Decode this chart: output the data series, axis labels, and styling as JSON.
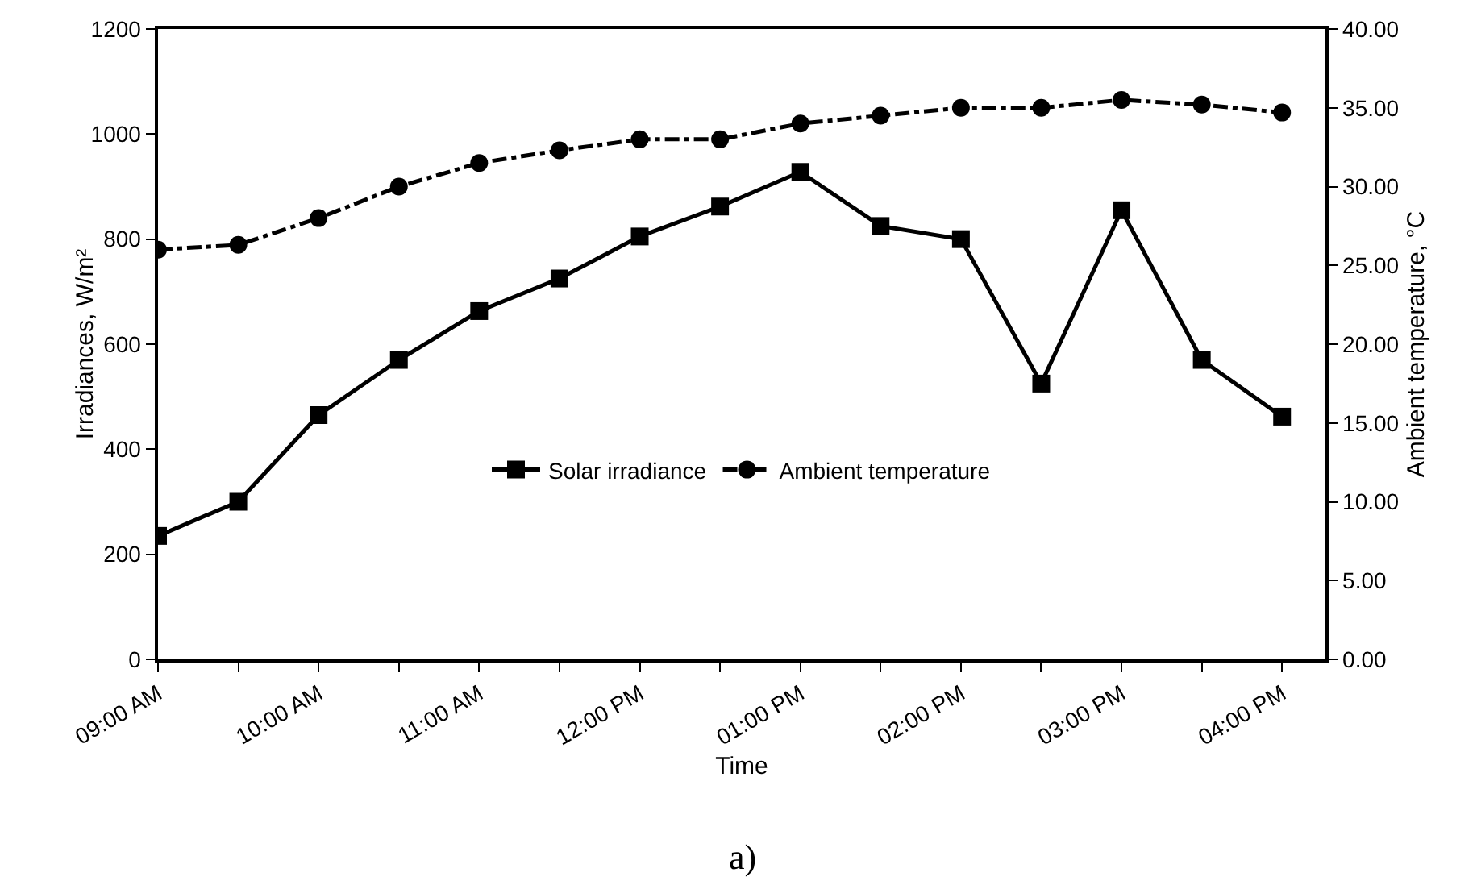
{
  "chart_data": {
    "type": "line",
    "xlabel": "Time",
    "ylabel": "Irradiances, W/m²",
    "y2label": "Ambient temperature, °C",
    "x": [
      9,
      9.5,
      10,
      10.5,
      11,
      11.5,
      12,
      12.5,
      13,
      13.5,
      14,
      14.5,
      15,
      15.5,
      16
    ],
    "series": [
      {
        "name": "Solar irradiance",
        "color": "#000000",
        "marker": "square",
        "line_style": "solid",
        "values": [
          235,
          300,
          465,
          570,
          663,
          725,
          805,
          862,
          928,
          825,
          800,
          525,
          855,
          570,
          462
        ]
      },
      {
        "name": "Ambient temperature",
        "color": "#000000",
        "marker": "circle",
        "line_style": "dashed",
        "axis": "y2",
        "values": [
          26.0,
          26.3,
          28.0,
          30.0,
          31.5,
          32.3,
          33.0,
          33.0,
          34.0,
          34.5,
          35.0,
          35.0,
          35.5,
          35.2,
          34.7
        ]
      }
    ],
    "xlim": [
      9,
      16.27
    ],
    "xticks": [
      {
        "value": 9,
        "label": "09:00 AM"
      },
      {
        "value": 9.5,
        "label": null
      },
      {
        "value": 10,
        "label": "10:00 AM"
      },
      {
        "value": 10.5,
        "label": null
      },
      {
        "value": 11,
        "label": "11:00 AM"
      },
      {
        "value": 11.5,
        "label": null
      },
      {
        "value": 12,
        "label": "12:00 PM"
      },
      {
        "value": 12.5,
        "label": null
      },
      {
        "value": 13,
        "label": "01:00 PM"
      },
      {
        "value": 13.5,
        "label": null
      },
      {
        "value": 14,
        "label": "02:00 PM"
      },
      {
        "value": 14.5,
        "label": null
      },
      {
        "value": 15,
        "label": "03:00 PM"
      },
      {
        "value": 15.5,
        "label": null
      },
      {
        "value": 16,
        "label": "04:00 PM"
      }
    ],
    "ylim": [
      0,
      1200
    ],
    "yticks": [
      0,
      200,
      400,
      600,
      800,
      1000,
      1200
    ],
    "y2lim": [
      0,
      40
    ],
    "y2ticks": [
      {
        "value": 0,
        "label": "0.00"
      },
      {
        "value": 5,
        "label": "5.00"
      },
      {
        "value": 10,
        "label": "10.00"
      },
      {
        "value": 15,
        "label": "15.00"
      },
      {
        "value": 20,
        "label": "20.00"
      },
      {
        "value": 25,
        "label": "25.00"
      },
      {
        "value": 30,
        "label": "30.00"
      },
      {
        "value": 35,
        "label": "35.00"
      },
      {
        "value": 40,
        "label": "40.00"
      }
    ],
    "grid": false,
    "legend": "center",
    "annotations": [
      "a)"
    ]
  }
}
